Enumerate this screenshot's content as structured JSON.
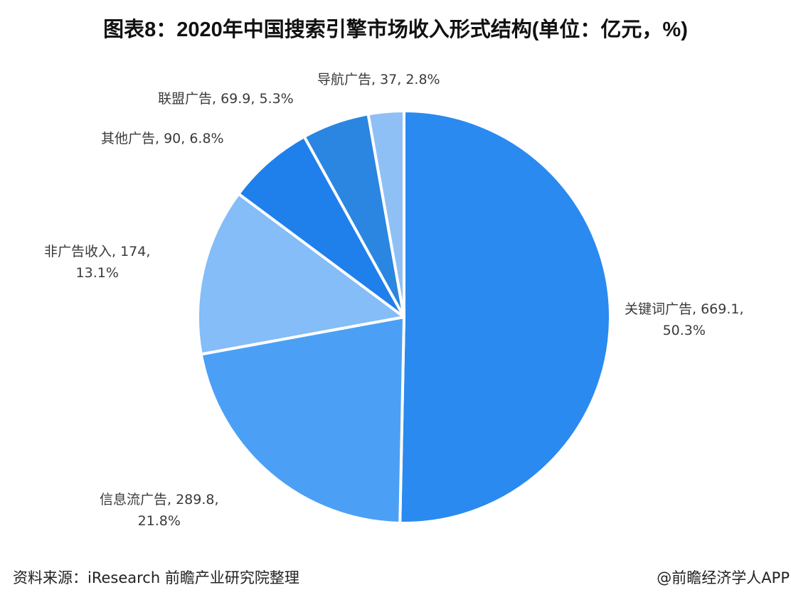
{
  "title": "图表8：2020年中国搜索引擎市场收入形式结构(单位：亿元，%)",
  "labels": {
    "keyword": {
      "line1": "关键词广告, 669.1,",
      "line2": "50.3%"
    },
    "feed": {
      "line1": "信息流广告, 289.8,",
      "line2": "21.8%"
    },
    "nonad": {
      "line1": "非广告收入, 174,",
      "line2": "13.1%"
    },
    "other": {
      "line1": "其他广告, 90, 6.8%"
    },
    "alliance": {
      "line1": "联盟广告, 69.9, 5.3%"
    },
    "nav": {
      "line1": "导航广告, 37, 2.8%"
    }
  },
  "footer": {
    "source": "资料来源：iResearch 前瞻产业研究院整理",
    "credit": "@前瞻经济学人APP"
  },
  "chart_data": {
    "type": "pie",
    "title": "图表8：2020年中国搜索引擎市场收入形式结构(单位：亿元，%)",
    "unit": "亿元",
    "start_angle": "12 o'clock, clockwise",
    "categories": [
      "关键词广告",
      "信息流广告",
      "非广告收入",
      "其他广告",
      "联盟广告",
      "导航广告"
    ],
    "values": [
      669.1,
      289.8,
      174,
      90,
      69.9,
      37
    ],
    "percentages": [
      50.3,
      21.8,
      13.1,
      6.8,
      5.3,
      2.8
    ],
    "colors": [
      "#2a8af0",
      "#4ba0f5",
      "#84bdf7",
      "#1f80ec",
      "#2a86e0",
      "#8fc0f5"
    ],
    "legend": "none (data labels)"
  }
}
